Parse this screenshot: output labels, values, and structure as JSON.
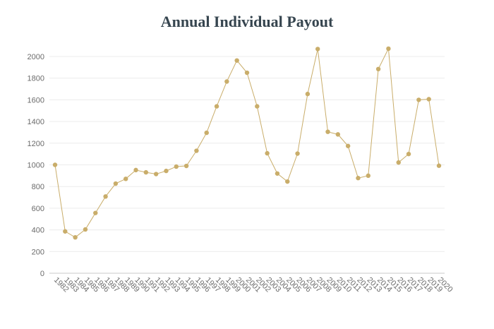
{
  "chart_data": {
    "type": "line",
    "title": "Annual Individual Payout",
    "xlabel": "",
    "ylabel": "",
    "ylim": [
      0,
      2000
    ],
    "yticks": [
      0,
      200,
      400,
      600,
      800,
      1000,
      1200,
      1400,
      1600,
      1800,
      2000
    ],
    "grid": true,
    "legend": "none",
    "color": "#c9ad6a",
    "categories": [
      "1982",
      "1983",
      "1984",
      "1985",
      "1986",
      "1987",
      "1988",
      "1989",
      "1990",
      "1991",
      "1992",
      "1993",
      "1994",
      "1995",
      "1996",
      "1997",
      "1998",
      "1999",
      "2000",
      "2001",
      "2002",
      "2003",
      "2004",
      "2005",
      "2006",
      "2007",
      "2008",
      "2009",
      "2010",
      "2011",
      "2012",
      "2013",
      "2014",
      "2015",
      "2016",
      "2017",
      "2018",
      "2019",
      "2020"
    ],
    "values": [
      1000,
      386,
      331,
      404,
      556,
      708,
      827,
      871,
      952,
      931,
      915,
      944,
      984,
      990,
      1130,
      1296,
      1540,
      1769,
      1963,
      1850,
      1540,
      1107,
      920,
      846,
      1104,
      1654,
      2069,
      1305,
      1281,
      1174,
      878,
      900,
      1884,
      2072,
      1022,
      1100,
      1600,
      1606,
      992
    ]
  }
}
